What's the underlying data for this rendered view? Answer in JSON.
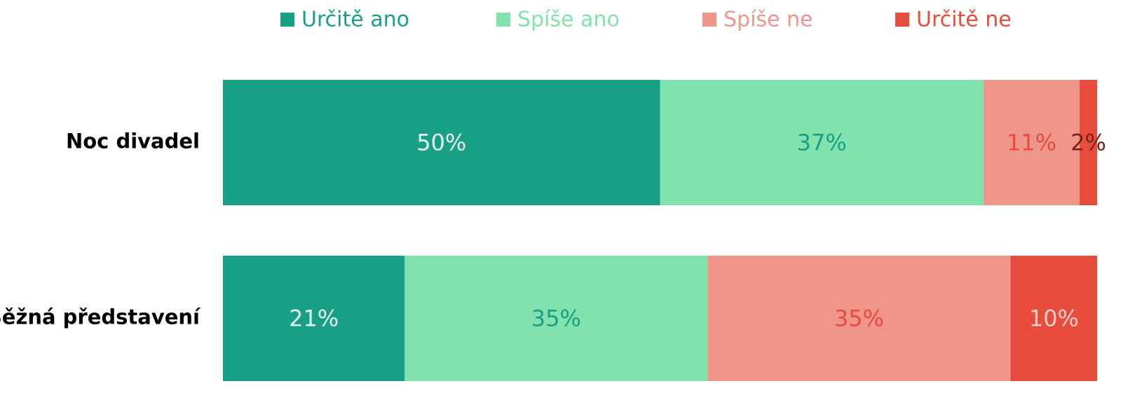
{
  "chart_data": {
    "type": "bar",
    "orientation": "horizontal",
    "stack": "percent",
    "legend": "top",
    "categories": [
      "Noc divadel",
      "Běžná představení"
    ],
    "series": [
      {
        "name": "Určitě ano",
        "color": "#17a086",
        "values": [
          50,
          21
        ],
        "value_labels": [
          "50%",
          "21%"
        ],
        "label_colors": [
          "#e6f6ef",
          "#e6f6ef"
        ]
      },
      {
        "name": "Spíše ano",
        "color": "#82e2ad",
        "values": [
          37,
          35
        ],
        "value_labels": [
          "37%",
          "35%"
        ],
        "label_colors": [
          "#17a086",
          "#17a086"
        ]
      },
      {
        "name": "Spíše ne",
        "color": "#f0958a",
        "values": [
          11,
          35
        ],
        "value_labels": [
          "11%",
          "35%"
        ],
        "label_colors": [
          "#e84c3d",
          "#e84c3d"
        ]
      },
      {
        "name": "Určitě ne",
        "color": "#e84c3d",
        "values": [
          2,
          10
        ],
        "value_labels": [
          "2%",
          "10%"
        ],
        "label_colors": [
          "#7a1f14",
          "#f9d0cb"
        ]
      }
    ]
  }
}
